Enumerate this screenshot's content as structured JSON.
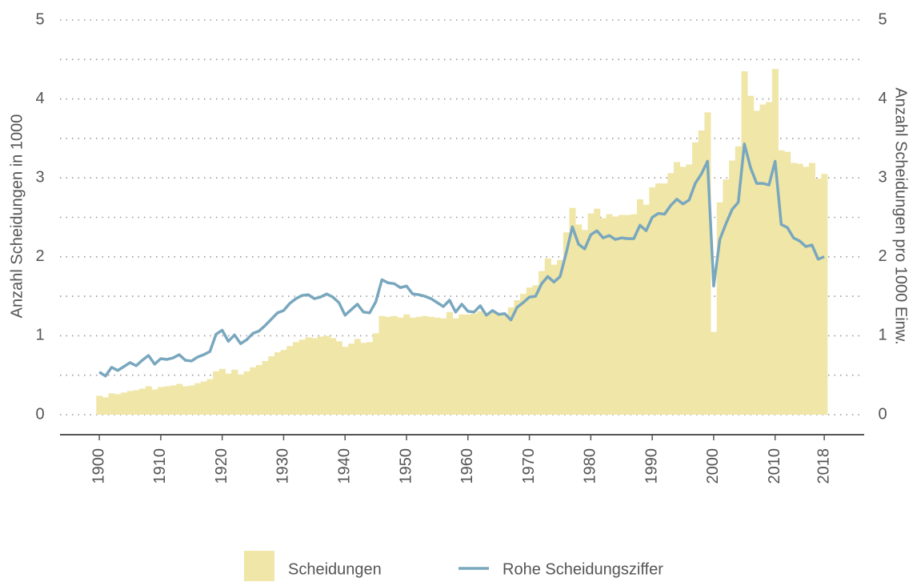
{
  "chart_data": {
    "type": "bar",
    "y_label": "Anzahl Scheidungen in 1000",
    "y2_label": "Anzahl Scheidungen pro 1000 Einw.",
    "x": [
      1900,
      1901,
      1902,
      1903,
      1904,
      1905,
      1906,
      1907,
      1908,
      1909,
      1910,
      1911,
      1912,
      1913,
      1914,
      1915,
      1916,
      1917,
      1918,
      1919,
      1920,
      1921,
      1922,
      1923,
      1924,
      1925,
      1926,
      1927,
      1928,
      1929,
      1930,
      1931,
      1932,
      1933,
      1934,
      1935,
      1936,
      1937,
      1938,
      1939,
      1940,
      1941,
      1942,
      1943,
      1944,
      1945,
      1946,
      1947,
      1948,
      1949,
      1950,
      1951,
      1952,
      1953,
      1954,
      1955,
      1956,
      1957,
      1958,
      1959,
      1960,
      1961,
      1962,
      1963,
      1964,
      1965,
      1966,
      1967,
      1968,
      1969,
      1970,
      1971,
      1972,
      1973,
      1974,
      1975,
      1976,
      1977,
      1978,
      1979,
      1980,
      1981,
      1982,
      1983,
      1984,
      1985,
      1986,
      1987,
      1988,
      1989,
      1990,
      1991,
      1992,
      1993,
      1994,
      1995,
      1996,
      1997,
      1998,
      1999,
      2000,
      2001,
      2002,
      2003,
      2004,
      2005,
      2006,
      2007,
      2008,
      2009,
      2010,
      2011,
      2012,
      2013,
      2014,
      2015,
      2016,
      2017,
      2018
    ],
    "series": [
      {
        "name": "Scheidungen",
        "type": "bar",
        "color": "#f0e6a8",
        "values": [
          0.24,
          0.22,
          0.27,
          0.26,
          0.28,
          0.3,
          0.31,
          0.33,
          0.36,
          0.32,
          0.35,
          0.36,
          0.37,
          0.39,
          0.36,
          0.37,
          0.4,
          0.42,
          0.45,
          0.55,
          0.58,
          0.52,
          0.57,
          0.51,
          0.55,
          0.6,
          0.63,
          0.68,
          0.74,
          0.79,
          0.82,
          0.87,
          0.92,
          0.95,
          0.98,
          0.97,
          0.99,
          1.0,
          0.97,
          0.93,
          0.86,
          0.9,
          0.96,
          0.91,
          0.92,
          1.03,
          1.25,
          1.24,
          1.25,
          1.23,
          1.27,
          1.23,
          1.24,
          1.25,
          1.24,
          1.23,
          1.22,
          1.3,
          1.22,
          1.27,
          1.27,
          1.28,
          1.31,
          1.27,
          1.3,
          1.29,
          1.27,
          1.36,
          1.45,
          1.53,
          1.61,
          1.64,
          1.82,
          1.98,
          1.9,
          1.96,
          2.31,
          2.62,
          2.41,
          2.34,
          2.55,
          2.61,
          2.49,
          2.54,
          2.51,
          2.53,
          2.53,
          2.54,
          2.73,
          2.66,
          2.88,
          2.93,
          2.93,
          3.06,
          3.2,
          3.14,
          3.17,
          3.45,
          3.6,
          3.83,
          1.05,
          2.69,
          2.98,
          3.22,
          3.4,
          4.35,
          4.04,
          3.85,
          3.93,
          3.96,
          4.38,
          3.35,
          3.33,
          3.19,
          3.18,
          3.14,
          3.19,
          2.99,
          3.05
        ]
      },
      {
        "name": "Rohe Scheidungsziffer",
        "type": "line",
        "axis": "y2",
        "color": "#79a7be",
        "values": [
          0.54,
          0.49,
          0.6,
          0.56,
          0.61,
          0.66,
          0.62,
          0.69,
          0.75,
          0.64,
          0.71,
          0.7,
          0.72,
          0.76,
          0.69,
          0.68,
          0.73,
          0.76,
          0.8,
          1.02,
          1.07,
          0.93,
          1.01,
          0.9,
          0.95,
          1.03,
          1.06,
          1.13,
          1.21,
          1.29,
          1.32,
          1.41,
          1.47,
          1.51,
          1.52,
          1.47,
          1.49,
          1.53,
          1.49,
          1.42,
          1.26,
          1.33,
          1.4,
          1.3,
          1.29,
          1.43,
          1.71,
          1.67,
          1.66,
          1.61,
          1.63,
          1.53,
          1.52,
          1.5,
          1.47,
          1.42,
          1.37,
          1.45,
          1.3,
          1.4,
          1.31,
          1.3,
          1.38,
          1.26,
          1.32,
          1.27,
          1.28,
          1.2,
          1.36,
          1.42,
          1.49,
          1.5,
          1.66,
          1.75,
          1.68,
          1.75,
          2.05,
          2.38,
          2.16,
          2.1,
          2.28,
          2.33,
          2.24,
          2.27,
          2.22,
          2.24,
          2.23,
          2.23,
          2.4,
          2.33,
          2.5,
          2.55,
          2.54,
          2.65,
          2.73,
          2.67,
          2.72,
          2.93,
          3.05,
          3.21,
          1.63,
          2.22,
          2.42,
          2.6,
          2.69,
          3.43,
          3.13,
          2.93,
          2.93,
          2.91,
          3.21,
          2.41,
          2.37,
          2.24,
          2.2,
          2.13,
          2.15,
          1.97,
          2.0
        ]
      }
    ],
    "xlim": [
      1893.6,
      2024.5
    ],
    "xticks": [
      1900,
      1910,
      1920,
      1930,
      1940,
      1950,
      1960,
      1970,
      1980,
      1990,
      2000,
      2010,
      2018
    ],
    "ylim": [
      0,
      5
    ],
    "yticks": [
      0,
      1,
      2,
      3,
      4,
      5
    ],
    "y2lim": [
      0,
      5
    ],
    "y2ticks": [
      0,
      1,
      2,
      3,
      4,
      5
    ],
    "ygrid": [
      0,
      0.5,
      1,
      1.5,
      2,
      2.5,
      3,
      3.5,
      4,
      4.5,
      5
    ],
    "grid": true,
    "legend": "bottom"
  }
}
